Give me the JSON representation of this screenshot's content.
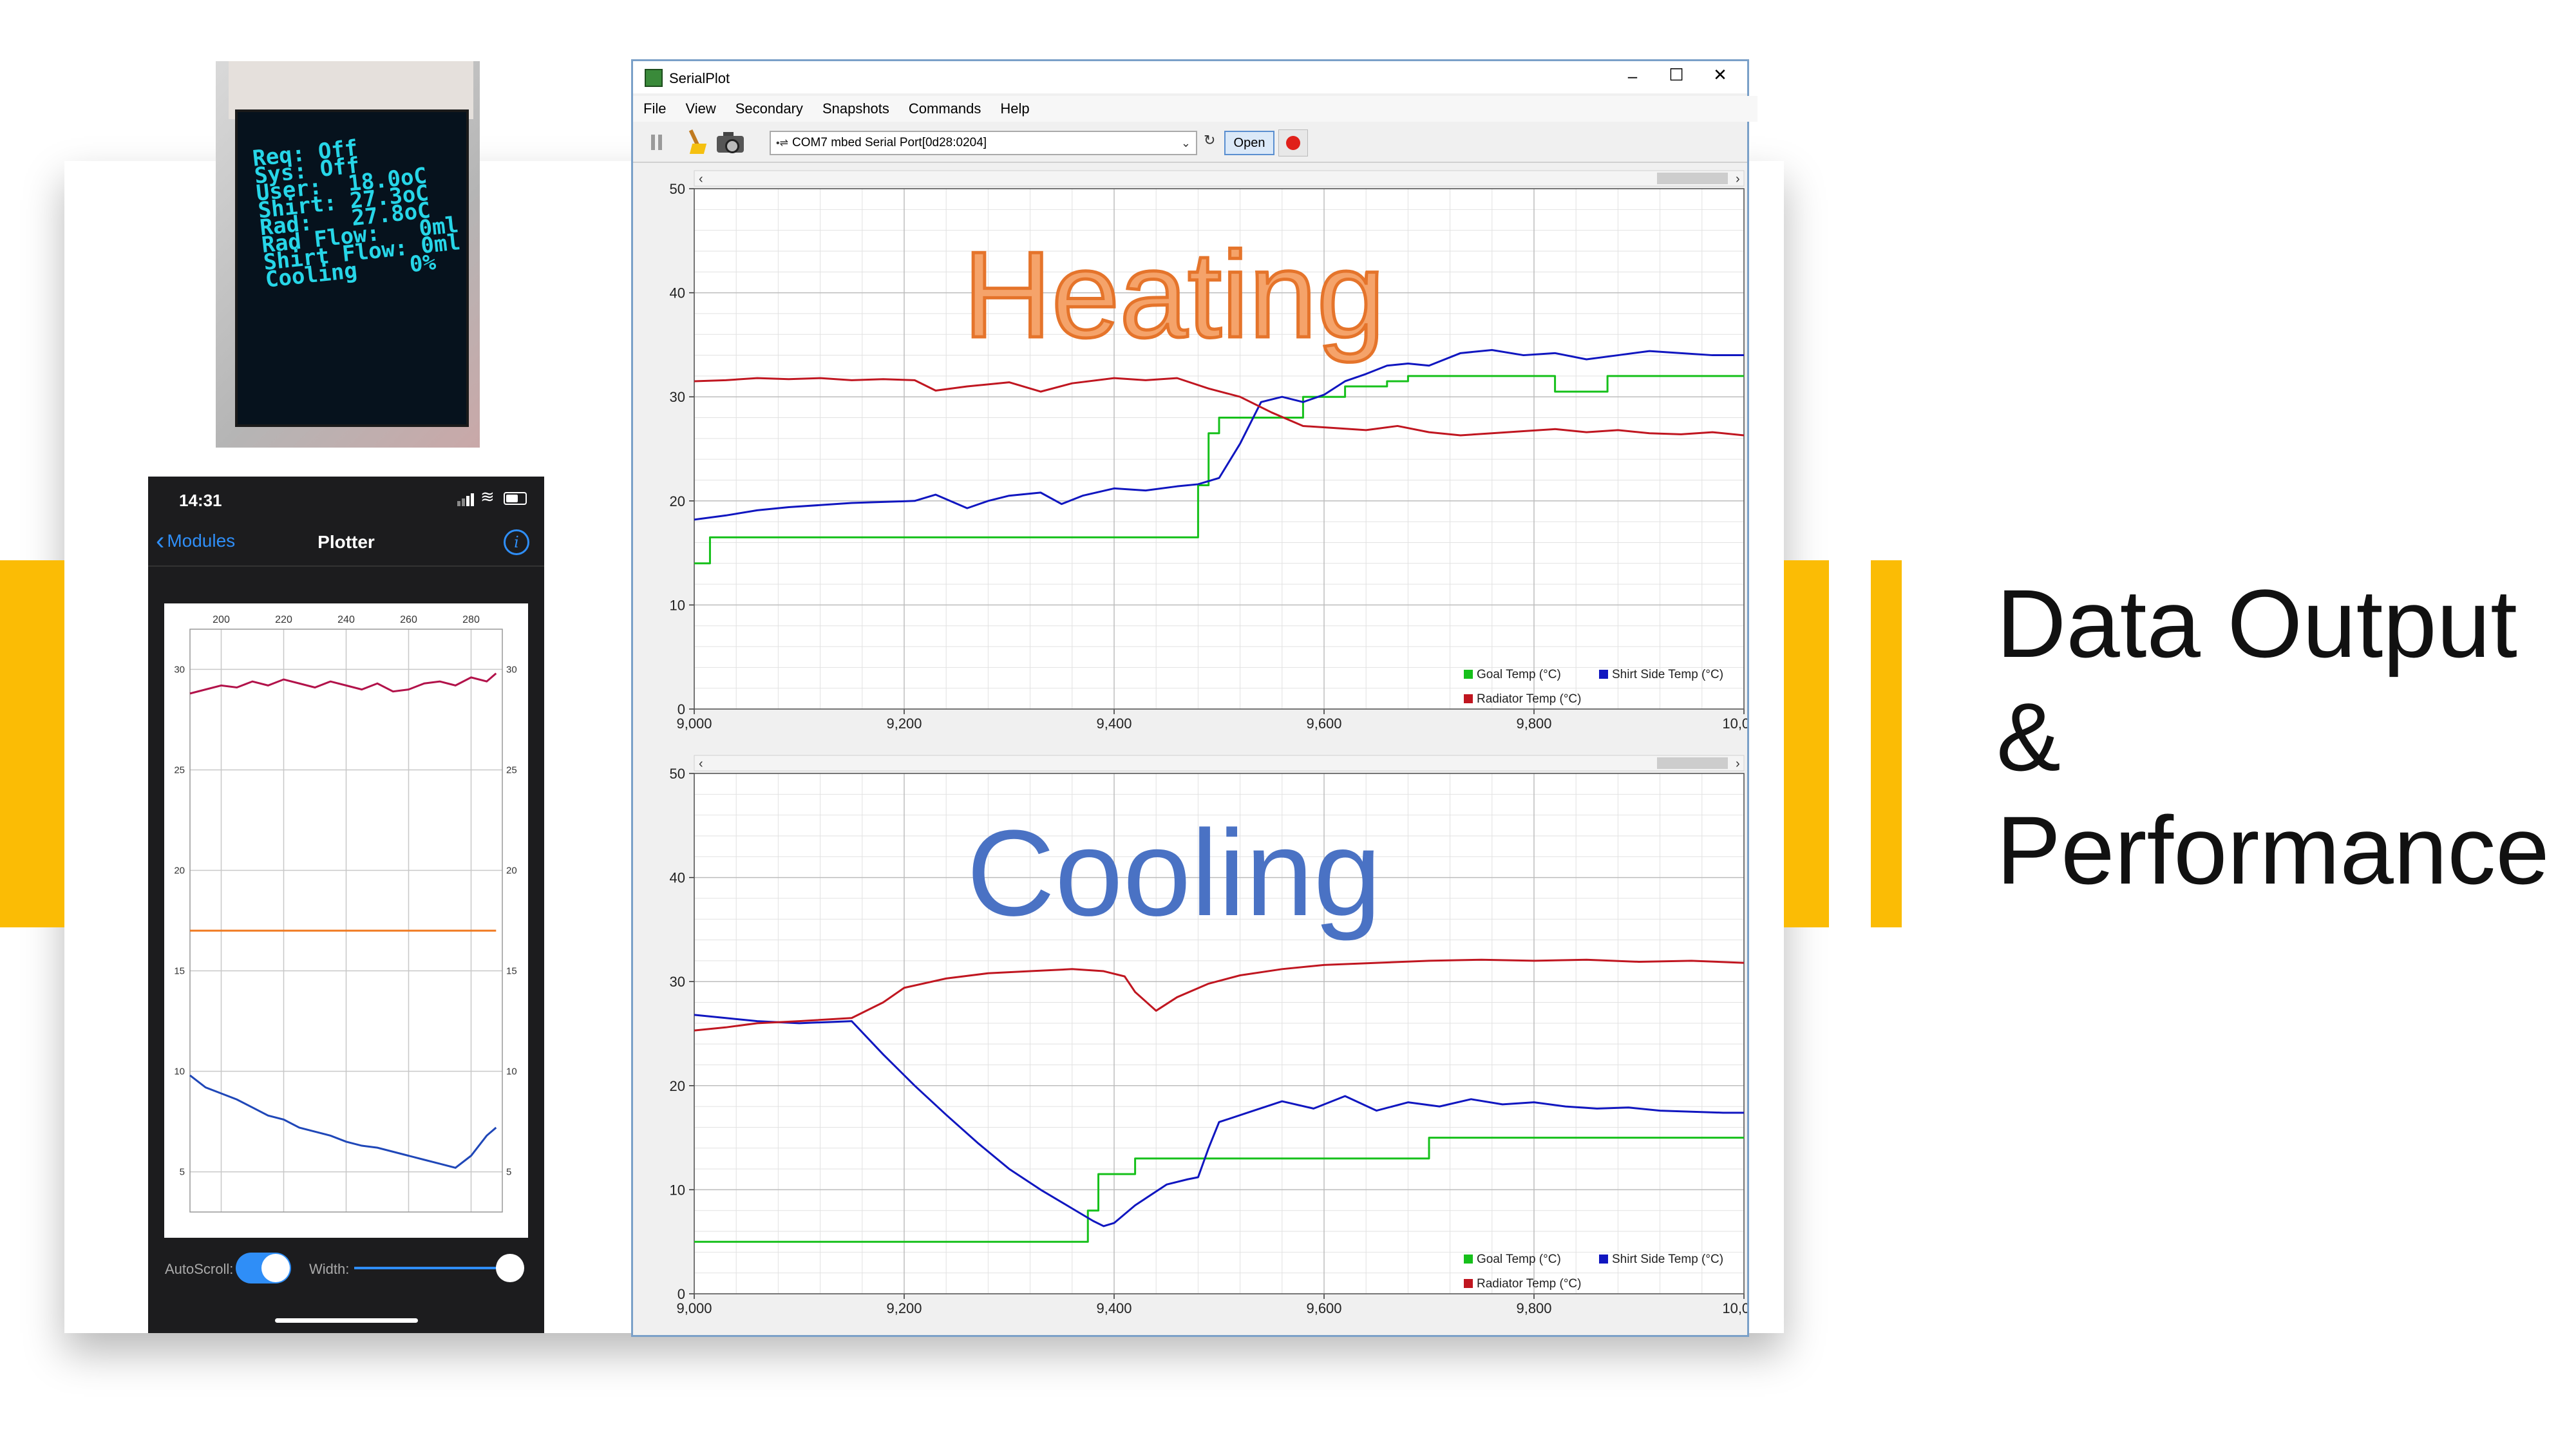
{
  "slide": {
    "title_lines": [
      "Data Output",
      "&",
      "Performance"
    ],
    "accent_color": "#fbbc05"
  },
  "oled": {
    "lines": [
      "Req: Off",
      "Sys: Off",
      "User:  18.0oC",
      "Shirt: 27.3oC",
      "Rad:   27.8oC",
      "Rad Flow:   0ml",
      "Shirt Flow: 0ml",
      "Cooling    0%"
    ],
    "text_color": "#27d6e8"
  },
  "phone": {
    "time": "14:31",
    "back_label": "Modules",
    "title": "Plotter",
    "info_icon": "info-icon",
    "autoscroll_label": "AutoScroll:",
    "width_label": "Width:",
    "autoscroll_on": true,
    "width_slider_value": 1.0
  },
  "serialplot": {
    "title": "SerialPlot",
    "menu": [
      "File",
      "View",
      "Secondary",
      "Snapshots",
      "Commands",
      "Help"
    ],
    "port": "COM7 mbed Serial Port[0d28:0204]",
    "open_label": "Open",
    "window_controls": {
      "minimize": "–",
      "maximize": "☐",
      "close": "✕"
    }
  },
  "chart_data": [
    {
      "id": "phone-plot",
      "type": "line",
      "x_ticks": [
        "200",
        "220",
        "240",
        "260",
        "280"
      ],
      "xlim": [
        190,
        290
      ],
      "y_ticks": [
        "5",
        "10",
        "15",
        "20",
        "25",
        "30"
      ],
      "ylim": [
        3,
        32
      ],
      "series": [
        {
          "color": "#b2124a",
          "x": [
            190,
            195,
            200,
            205,
            210,
            215,
            220,
            225,
            230,
            235,
            240,
            245,
            250,
            255,
            260,
            265,
            270,
            275,
            280,
            285,
            288
          ],
          "values": [
            28.8,
            29.0,
            29.2,
            29.1,
            29.4,
            29.2,
            29.5,
            29.3,
            29.1,
            29.4,
            29.2,
            29.0,
            29.3,
            28.9,
            29.0,
            29.3,
            29.4,
            29.2,
            29.6,
            29.4,
            29.8
          ]
        },
        {
          "color": "#f07a22",
          "x": [
            190,
            288
          ],
          "values": [
            17.0,
            17.0
          ]
        },
        {
          "color": "#1f47b8",
          "x": [
            190,
            195,
            200,
            205,
            210,
            215,
            220,
            225,
            230,
            235,
            240,
            245,
            250,
            255,
            260,
            265,
            270,
            275,
            280,
            285,
            288
          ],
          "values": [
            9.8,
            9.2,
            8.9,
            8.6,
            8.2,
            7.8,
            7.6,
            7.2,
            7.0,
            6.8,
            6.5,
            6.3,
            6.2,
            6.0,
            5.8,
            5.6,
            5.4,
            5.2,
            5.8,
            6.8,
            7.2
          ]
        }
      ]
    },
    {
      "id": "heating-plot",
      "type": "line",
      "title": "Heating",
      "x_ticks": [
        "9,000",
        "9,200",
        "9,400",
        "9,600",
        "9,800",
        "10,000"
      ],
      "xlim": [
        9000,
        10000
      ],
      "y_ticks": [
        "0",
        "10",
        "20",
        "30",
        "40",
        "50"
      ],
      "ylim": [
        0,
        50
      ],
      "legend": [
        {
          "label": "Goal Temp (°C)",
          "color": "#16c01b"
        },
        {
          "label": "Shirt Side Temp (°C)",
          "color": "#1016c0"
        },
        {
          "label": "Radiator Temp (°C)",
          "color": "#c01620"
        }
      ],
      "series": [
        {
          "name": "Goal Temp (°C)",
          "color": "#16c01b",
          "x": [
            9000,
            9015,
            9015,
            9480,
            9480,
            9490,
            9490,
            9500,
            9500,
            9580,
            9580,
            9620,
            9620,
            9660,
            9660,
            9680,
            9680,
            9820,
            9820,
            9870,
            9870,
            10000
          ],
          "values": [
            14,
            14,
            16.5,
            16.5,
            21.5,
            21.5,
            26.5,
            26.5,
            28,
            28,
            30,
            30,
            31,
            31,
            31.5,
            31.5,
            32,
            32,
            30.5,
            30.5,
            32,
            32
          ]
        },
        {
          "name": "Shirt Side Temp (°C)",
          "color": "#1016c0",
          "x": [
            9000,
            9030,
            9060,
            9090,
            9120,
            9150,
            9180,
            9210,
            9230,
            9260,
            9280,
            9300,
            9330,
            9350,
            9370,
            9400,
            9430,
            9460,
            9480,
            9500,
            9520,
            9540,
            9560,
            9580,
            9600,
            9620,
            9640,
            9660,
            9680,
            9700,
            9730,
            9760,
            9790,
            9820,
            9850,
            9880,
            9910,
            9940,
            9970,
            10000
          ],
          "values": [
            18.2,
            18.6,
            19.1,
            19.4,
            19.6,
            19.8,
            19.9,
            20.0,
            20.6,
            19.3,
            20.0,
            20.5,
            20.8,
            19.7,
            20.5,
            21.2,
            21.0,
            21.4,
            21.6,
            22.2,
            25.5,
            29.5,
            30.0,
            29.5,
            30.2,
            31.5,
            32.2,
            33.0,
            33.2,
            33.0,
            34.2,
            34.5,
            34.0,
            34.2,
            33.6,
            34.0,
            34.4,
            34.2,
            34.0,
            34.0
          ]
        },
        {
          "name": "Radiator Temp (°C)",
          "color": "#c01620",
          "x": [
            9000,
            9030,
            9060,
            9090,
            9120,
            9150,
            9180,
            9210,
            9230,
            9260,
            9300,
            9330,
            9360,
            9400,
            9430,
            9460,
            9490,
            9520,
            9550,
            9580,
            9610,
            9640,
            9670,
            9700,
            9730,
            9760,
            9790,
            9820,
            9850,
            9880,
            9910,
            9940,
            9970,
            10000
          ],
          "values": [
            31.5,
            31.6,
            31.8,
            31.7,
            31.8,
            31.6,
            31.7,
            31.6,
            30.6,
            31.0,
            31.4,
            30.5,
            31.3,
            31.8,
            31.6,
            31.8,
            30.8,
            30.0,
            28.5,
            27.2,
            27.0,
            26.8,
            27.2,
            26.6,
            26.3,
            26.5,
            26.7,
            26.9,
            26.6,
            26.8,
            26.5,
            26.4,
            26.6,
            26.3
          ]
        }
      ]
    },
    {
      "id": "cooling-plot",
      "type": "line",
      "title": "Cooling",
      "x_ticks": [
        "9,000",
        "9,200",
        "9,400",
        "9,600",
        "9,800",
        "10,000"
      ],
      "xlim": [
        9000,
        10000
      ],
      "y_ticks": [
        "0",
        "10",
        "20",
        "30",
        "40",
        "50"
      ],
      "ylim": [
        0,
        50
      ],
      "legend": [
        {
          "label": "Goal Temp (°C)",
          "color": "#16c01b"
        },
        {
          "label": "Shirt Side Temp (°C)",
          "color": "#1016c0"
        },
        {
          "label": "Radiator Temp (°C)",
          "color": "#c01620"
        }
      ],
      "series": [
        {
          "name": "Goal Temp (°C)",
          "color": "#16c01b",
          "x": [
            9000,
            9375,
            9375,
            9385,
            9385,
            9420,
            9420,
            9700,
            9700,
            10000
          ],
          "values": [
            5,
            5,
            8,
            8,
            11.5,
            11.5,
            13,
            13,
            15,
            15
          ]
        },
        {
          "name": "Shirt Side Temp (°C)",
          "color": "#1016c0",
          "x": [
            9000,
            9030,
            9060,
            9100,
            9150,
            9180,
            9210,
            9240,
            9270,
            9300,
            9330,
            9360,
            9380,
            9390,
            9400,
            9420,
            9450,
            9470,
            9480,
            9490,
            9500,
            9530,
            9560,
            9590,
            9620,
            9650,
            9680,
            9710,
            9740,
            9770,
            9800,
            9830,
            9860,
            9890,
            9920,
            9950,
            9980,
            10000
          ],
          "values": [
            26.8,
            26.5,
            26.2,
            26.0,
            26.2,
            23.0,
            20.0,
            17.2,
            14.5,
            12.0,
            10.0,
            8.2,
            7.0,
            6.5,
            6.8,
            8.5,
            10.5,
            11.0,
            11.2,
            14.0,
            16.5,
            17.5,
            18.5,
            17.8,
            19.0,
            17.6,
            18.4,
            18.0,
            18.7,
            18.2,
            18.4,
            18.0,
            17.8,
            17.9,
            17.6,
            17.5,
            17.4,
            17.4
          ]
        },
        {
          "name": "Radiator Temp (°C)",
          "color": "#c01620",
          "x": [
            9000,
            9030,
            9060,
            9100,
            9150,
            9180,
            9200,
            9240,
            9280,
            9320,
            9360,
            9390,
            9410,
            9420,
            9440,
            9460,
            9490,
            9520,
            9560,
            9600,
            9650,
            9700,
            9750,
            9800,
            9850,
            9900,
            9950,
            10000
          ],
          "values": [
            25.3,
            25.6,
            26.0,
            26.2,
            26.5,
            28.0,
            29.4,
            30.3,
            30.8,
            31.0,
            31.2,
            31.0,
            30.5,
            29.0,
            27.2,
            28.5,
            29.8,
            30.6,
            31.2,
            31.6,
            31.8,
            32.0,
            32.1,
            32.0,
            32.1,
            31.9,
            32.0,
            31.8
          ]
        }
      ]
    }
  ]
}
